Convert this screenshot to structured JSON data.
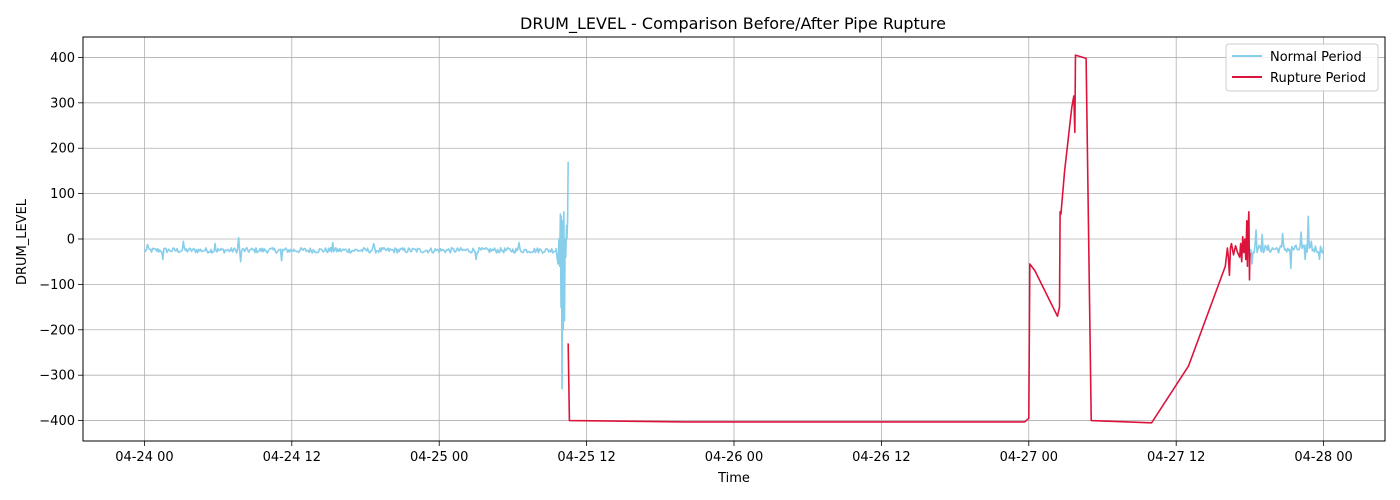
{
  "chart_data": {
    "type": "line",
    "title": "DRUM_LEVEL - Comparison Before/After Pipe Rupture",
    "xlabel": "Time",
    "ylabel": "DRUM_LEVEL",
    "x_type": "datetime",
    "xlim": [
      "2020-04-23T19:00",
      "2020-04-28T05:00"
    ],
    "ylim": [
      -445,
      445
    ],
    "x_ticks": [
      "2020-04-24T00:00",
      "2020-04-24T12:00",
      "2020-04-25T00:00",
      "2020-04-25T12:00",
      "2020-04-26T00:00",
      "2020-04-26T12:00",
      "2020-04-27T00:00",
      "2020-04-27T12:00",
      "2020-04-28T00:00"
    ],
    "x_tick_labels": [
      "04-24 00",
      "04-24 12",
      "04-25 00",
      "04-25 12",
      "04-26 00",
      "04-26 12",
      "04-27 00",
      "04-27 12",
      "04-28 00"
    ],
    "y_ticks": [
      -400,
      -300,
      -200,
      -100,
      0,
      100,
      200,
      300,
      400
    ],
    "y_tick_labels": [
      "−400",
      "−300",
      "−200",
      "−100",
      "0",
      "100",
      "200",
      "300",
      "400"
    ],
    "grid": true,
    "legend_position": "top-right",
    "series": [
      {
        "name": "Normal Period",
        "color": "#87ceeb",
        "segments": [
          {
            "start": "2020-04-24T00:00",
            "end": "2020-04-25T09:30",
            "baseline": -25,
            "noise": 6,
            "spikes": [
              {
                "x": "2020-04-24T00:15",
                "y": -12
              },
              {
                "x": "2020-04-24T01:30",
                "y": -45
              },
              {
                "x": "2020-04-24T03:10",
                "y": -5
              },
              {
                "x": "2020-04-24T05:45",
                "y": -10
              },
              {
                "x": "2020-04-24T07:40",
                "y": 3
              },
              {
                "x": "2020-04-24T07:50",
                "y": -50
              },
              {
                "x": "2020-04-24T11:10",
                "y": -48
              },
              {
                "x": "2020-04-24T15:20",
                "y": -8
              },
              {
                "x": "2020-04-24T18:40",
                "y": -10
              },
              {
                "x": "2020-04-25T03:00",
                "y": -45
              },
              {
                "x": "2020-04-25T06:30",
                "y": -8
              }
            ]
          },
          {
            "start": "2020-04-25T09:30",
            "end": "2020-04-25T10:30",
            "points": [
              {
                "x": "2020-04-25T09:30",
                "y": -20
              },
              {
                "x": "2020-04-25T09:40",
                "y": -55
              },
              {
                "x": "2020-04-25T09:45",
                "y": 0
              },
              {
                "x": "2020-04-25T09:48",
                "y": -60
              },
              {
                "x": "2020-04-25T09:52",
                "y": 55
              },
              {
                "x": "2020-04-25T09:55",
                "y": -150
              },
              {
                "x": "2020-04-25T09:57",
                "y": 50
              },
              {
                "x": "2020-04-25T10:00",
                "y": -330
              },
              {
                "x": "2020-04-25T10:03",
                "y": 40
              },
              {
                "x": "2020-04-25T10:06",
                "y": -200
              },
              {
                "x": "2020-04-25T10:09",
                "y": 60
              },
              {
                "x": "2020-04-25T10:12",
                "y": -180
              },
              {
                "x": "2020-04-25T10:15",
                "y": 0
              },
              {
                "x": "2020-04-25T10:18",
                "y": -40
              },
              {
                "x": "2020-04-25T10:22",
                "y": 30
              },
              {
                "x": "2020-04-25T10:24",
                "y": 0
              },
              {
                "x": "2020-04-25T10:27",
                "y": 40
              },
              {
                "x": "2020-04-25T10:30",
                "y": 170
              }
            ]
          },
          {
            "start": "2020-04-27T18:00",
            "end": "2020-04-28T00:00",
            "baseline": -22,
            "noise": 9,
            "spikes": [
              {
                "x": "2020-04-27T18:10",
                "y": -55
              },
              {
                "x": "2020-04-27T18:30",
                "y": 20
              },
              {
                "x": "2020-04-27T19:00",
                "y": 10
              },
              {
                "x": "2020-04-27T20:40",
                "y": 12
              },
              {
                "x": "2020-04-27T21:20",
                "y": -65
              },
              {
                "x": "2020-04-27T22:10",
                "y": 15
              },
              {
                "x": "2020-04-27T22:30",
                "y": -45
              },
              {
                "x": "2020-04-27T22:45",
                "y": 50
              },
              {
                "x": "2020-04-27T23:00",
                "y": -5
              },
              {
                "x": "2020-04-27T23:40",
                "y": -45
              }
            ]
          }
        ]
      },
      {
        "name": "Rupture Period",
        "color": "#dc143c",
        "segments": [
          {
            "points": [
              {
                "x": "2020-04-25T10:30",
                "y": -230
              },
              {
                "x": "2020-04-25T10:36",
                "y": -400
              },
              {
                "x": "2020-04-25T20:00",
                "y": -403
              },
              {
                "x": "2020-04-26T23:40",
                "y": -403
              },
              {
                "x": "2020-04-27T00:00",
                "y": -395
              },
              {
                "x": "2020-04-27T00:05",
                "y": -55
              },
              {
                "x": "2020-04-27T00:30",
                "y": -70
              },
              {
                "x": "2020-04-27T02:20",
                "y": -170
              },
              {
                "x": "2020-04-27T02:30",
                "y": -150
              },
              {
                "x": "2020-04-27T02:33",
                "y": 60
              },
              {
                "x": "2020-04-27T02:37",
                "y": 55
              },
              {
                "x": "2020-04-27T02:55",
                "y": 150
              },
              {
                "x": "2020-04-27T03:30",
                "y": 290
              },
              {
                "x": "2020-04-27T03:40",
                "y": 315
              },
              {
                "x": "2020-04-27T03:45",
                "y": 235
              },
              {
                "x": "2020-04-27T03:48",
                "y": 405
              },
              {
                "x": "2020-04-27T04:40",
                "y": 398
              },
              {
                "x": "2020-04-27T05:05",
                "y": -400
              },
              {
                "x": "2020-04-27T10:00",
                "y": -405
              },
              {
                "x": "2020-04-27T13:00",
                "y": -280
              },
              {
                "x": "2020-04-27T16:00",
                "y": -60
              },
              {
                "x": "2020-04-27T16:10",
                "y": -20
              },
              {
                "x": "2020-04-27T16:15",
                "y": -40
              },
              {
                "x": "2020-04-27T16:20",
                "y": -80
              },
              {
                "x": "2020-04-27T16:25",
                "y": -20
              },
              {
                "x": "2020-04-27T16:30",
                "y": -10
              },
              {
                "x": "2020-04-27T16:40",
                "y": -35
              },
              {
                "x": "2020-04-27T16:50",
                "y": -15
              },
              {
                "x": "2020-04-27T17:00",
                "y": -30
              },
              {
                "x": "2020-04-27T17:10",
                "y": -40
              },
              {
                "x": "2020-04-27T17:15",
                "y": -10
              },
              {
                "x": "2020-04-27T17:20",
                "y": -50
              },
              {
                "x": "2020-04-27T17:25",
                "y": 5
              },
              {
                "x": "2020-04-27T17:30",
                "y": -30
              },
              {
                "x": "2020-04-27T17:35",
                "y": 0
              },
              {
                "x": "2020-04-27T17:40",
                "y": -45
              },
              {
                "x": "2020-04-27T17:45",
                "y": 40
              },
              {
                "x": "2020-04-27T17:48",
                "y": -60
              },
              {
                "x": "2020-04-27T17:50",
                "y": 10
              },
              {
                "x": "2020-04-27T17:55",
                "y": 60
              },
              {
                "x": "2020-04-27T17:58",
                "y": -90
              },
              {
                "x": "2020-04-27T18:00",
                "y": -30
              }
            ]
          }
        ]
      }
    ]
  }
}
